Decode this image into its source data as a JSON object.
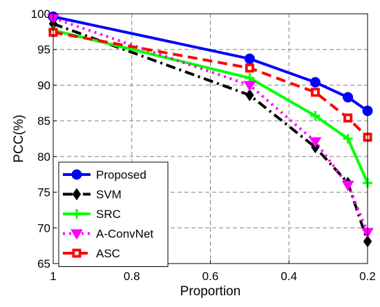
{
  "chart_data": {
    "type": "line",
    "title": "",
    "xlabel": "Proportion",
    "ylabel": "PCC(%)",
    "x": [
      1,
      0.5,
      0.333,
      0.25,
      0.2
    ],
    "xlim": [
      1,
      0.2
    ],
    "x_reversed": true,
    "ylim": [
      65,
      100
    ],
    "xticks": [
      {
        "value": 1,
        "label": "1"
      },
      {
        "value": 0.8,
        "label": "0.8"
      },
      {
        "value": 0.6,
        "label": "0.6"
      },
      {
        "value": 0.4,
        "label": "0.4"
      },
      {
        "value": 0.2,
        "label": "0.2"
      }
    ],
    "yticks": [
      {
        "value": 65,
        "label": "65"
      },
      {
        "value": 70,
        "label": "70"
      },
      {
        "value": 75,
        "label": "75"
      },
      {
        "value": 80,
        "label": "80"
      },
      {
        "value": 85,
        "label": "85"
      },
      {
        "value": 90,
        "label": "90"
      },
      {
        "value": 95,
        "label": "95"
      },
      {
        "value": 100,
        "label": "100"
      }
    ],
    "grid": true,
    "legend_position": "bottom-left",
    "series": [
      {
        "name": "Proposed",
        "values": [
          99.6,
          93.7,
          90.4,
          88.3,
          86.4
        ],
        "color": "#0000ff",
        "line_style": "solid",
        "marker": "circle"
      },
      {
        "name": "SVM",
        "values": [
          98.6,
          88.6,
          81.3,
          76.3,
          68.1
        ],
        "color": "#000000",
        "line_style": "dash-dot",
        "marker": "diamond"
      },
      {
        "name": "SRC",
        "values": [
          97.7,
          91.0,
          85.7,
          82.5,
          76.3
        ],
        "color": "#00ff00",
        "line_style": "solid",
        "marker": "star"
      },
      {
        "name": "A-ConvNet",
        "values": [
          99.4,
          90.0,
          82.1,
          76.0,
          69.4
        ],
        "color": "#ff00ff",
        "line_style": "dotted",
        "marker": "triangle-down"
      },
      {
        "name": "ASC",
        "values": [
          97.4,
          92.4,
          89.0,
          85.4,
          82.7
        ],
        "color": "#ff0000",
        "line_style": "dashed",
        "marker": "square"
      }
    ]
  }
}
